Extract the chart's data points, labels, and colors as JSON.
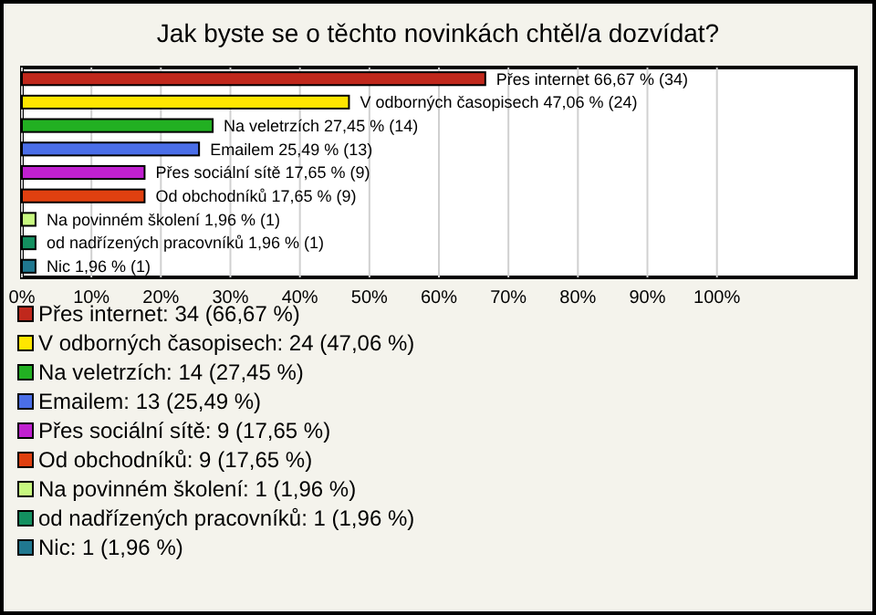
{
  "chart_data": {
    "type": "bar",
    "orientation": "horizontal",
    "title": "Jak byste se o těchto novinkách chtěl/a dozvídat?",
    "categories": [
      "Přes internet",
      "V odborných časopisech",
      "Na veletrzích",
      "Emailem",
      "Přes sociální sítě",
      "Od obchodníků",
      "Na povinném školení",
      "od nadřízených pracovníků",
      "Nic"
    ],
    "values": [
      66.67,
      47.06,
      27.45,
      25.49,
      17.65,
      17.65,
      1.96,
      1.96,
      1.96
    ],
    "colors": [
      "#c0281c",
      "#ffe600",
      "#22b022",
      "#4a6ee8",
      "#c020d0",
      "#e04010",
      "#c8f880",
      "#139060",
      "#207890"
    ],
    "value_labels": [
      "66,67 % (34)",
      "47,06 % (24)",
      "27,45 % (14)",
      "25,49 % (13)",
      "17,65 % (9)",
      "17,65 % (9)",
      "1,96 % (1)",
      "1,96 % (1)",
      "1,96 % (1)"
    ],
    "xlim": [
      0,
      120
    ],
    "xticks": [
      {
        "value": 0,
        "label": "0%"
      },
      {
        "value": 10,
        "label": "10%"
      },
      {
        "value": 20,
        "label": "20%"
      },
      {
        "value": 30,
        "label": "30%"
      },
      {
        "value": 40,
        "label": "40%"
      },
      {
        "value": 50,
        "label": "50%"
      },
      {
        "value": 60,
        "label": "60%"
      },
      {
        "value": 70,
        "label": "70%"
      },
      {
        "value": 80,
        "label": "80%"
      },
      {
        "value": 90,
        "label": "90%"
      },
      {
        "value": 100,
        "label": "100%"
      }
    ],
    "grid": "x",
    "annotations": [
      "Přes internet: 34 (66,67 %)",
      "V odborných časopisech: 24 (47,06 %)",
      "Na veletrzích: 14 (27,45 %)",
      "Emailem: 13 (25,49 %)",
      "Přes sociální sítě: 9 (17,65 %)",
      "Od obchodníků: 9 (17,65 %)",
      "Na povinném školení: 1 (1,96 %)",
      "od nadřízených pracovníků: 1 (1,96 %)",
      "Nic: 1 (1,96 %)"
    ]
  }
}
